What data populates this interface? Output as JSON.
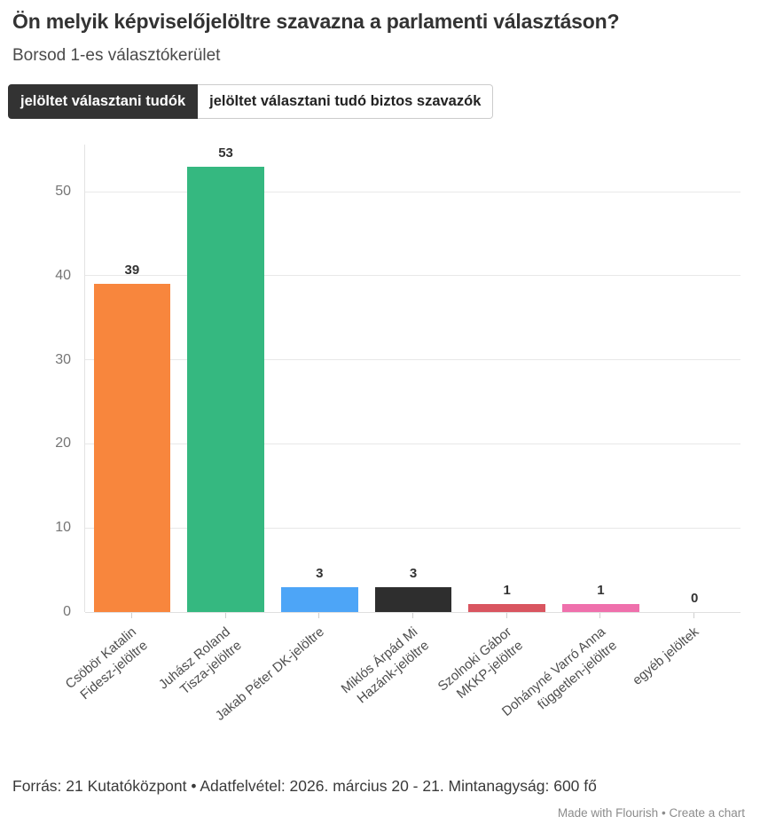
{
  "header": {
    "title": "Ön melyik képviselőjelöltre szavazna a parlamenti választáson?",
    "subtitle": "Borsod 1-es választókerület"
  },
  "tabs": [
    {
      "label": "jelöltet választani tudók",
      "active": true
    },
    {
      "label": "jelöltet választani tudó biztos szavazók",
      "active": false
    }
  ],
  "chart_data": {
    "type": "bar",
    "title": "Ön melyik képviselőjelöltre szavazna a parlamenti választáson?",
    "subtitle": "Borsod 1-es választókerület",
    "categories": [
      "Csöbör Katalin Fidesz-jelöltre",
      "Juhász Roland Tisza-jelöltre",
      "Jakab Péter DK-jelöltre",
      "Miklós Árpád Mi Hazánk-jelöltre",
      "Szolnoki Gábor MKKP-jelöltre",
      "Dohányné Varró Anna független-jelöltre",
      "egyéb jelöltek"
    ],
    "category_lines": [
      [
        "Csöbör Katalin",
        "Fidesz-jelöltre"
      ],
      [
        "Juhász Roland",
        "Tisza-jelöltre"
      ],
      [
        "Jakab Péter DK-jelöltre"
      ],
      [
        "Miklós Árpád Mi",
        "Hazánk-jelöltre"
      ],
      [
        "Szolnoki Gábor",
        "MKKP-jelöltre"
      ],
      [
        "Dohányné Varró Anna",
        "független-jelöltre"
      ],
      [
        "egyéb jelöltek"
      ]
    ],
    "values": [
      39,
      53,
      3,
      3,
      1,
      1,
      0
    ],
    "bar_colors": [
      "#F8863D",
      "#35B880",
      "#4DA5F7",
      "#2E2E2E",
      "#D95560",
      "#EF70AC",
      "#CCCCCC"
    ],
    "yticks": [
      0,
      10,
      20,
      30,
      40,
      50
    ],
    "ylim": [
      0,
      55.6
    ],
    "grid": true,
    "legend": "none",
    "value_labels": true,
    "xlabel": "",
    "ylabel": ""
  },
  "footer": {
    "source": "Forrás: 21 Kutatóközpont • Adatfelvétel: 2026. március 20 - 21. Mintanagyság: 600 fő"
  },
  "credit": {
    "made_with": "Made with Flourish",
    "separator": "•",
    "create": "Create a chart"
  },
  "theme": {
    "active_tab_bg": "#333333",
    "title_color": "#333333",
    "subtitle_color": "#4A4A4A",
    "grid_color": "#E8E8E8",
    "axis_tick_label_color": "#757575",
    "category_label_color": "#4D4D4D",
    "credit_color": "#8C8C8C"
  }
}
